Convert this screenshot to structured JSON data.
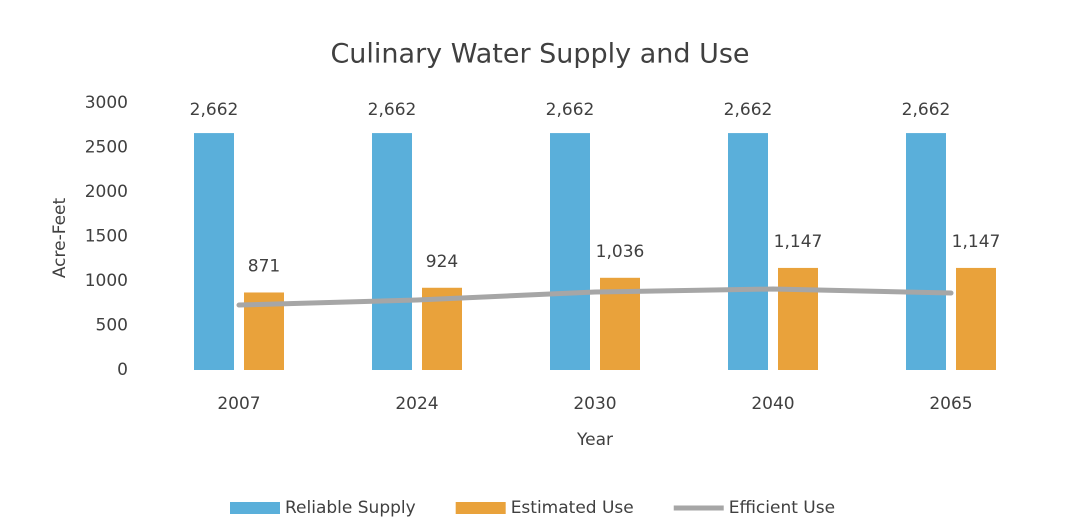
{
  "chart_data": {
    "type": "bar",
    "title": "Culinary Water Supply and Use",
    "x_label": "Year",
    "y_label": "Acre-Feet",
    "categories": [
      "2007",
      "2024",
      "2030",
      "2040",
      "2065"
    ],
    "series": [
      {
        "name": "Reliable Supply",
        "type": "bar",
        "color": "#5aafda",
        "values": [
          2662,
          2662,
          2662,
          2662,
          2662
        ],
        "value_labels": [
          "2,662",
          "2,662",
          "2,662",
          "2,662",
          "2,662"
        ]
      },
      {
        "name": "Estimated Use",
        "type": "bar",
        "color": "#e9a23b",
        "values": [
          871,
          924,
          1036,
          1147,
          1147
        ],
        "value_labels": [
          "871",
          "924",
          "1,036",
          "1,147",
          "1,147"
        ]
      },
      {
        "name": "Efficient Use",
        "type": "line",
        "color": "#a6a6a6",
        "values": [
          730,
          787,
          876,
          910,
          865
        ]
      }
    ],
    "ylim": [
      0,
      3000
    ],
    "yticks": [
      0,
      500,
      1000,
      1500,
      2000,
      2500,
      3000
    ],
    "legend": "bottom"
  }
}
